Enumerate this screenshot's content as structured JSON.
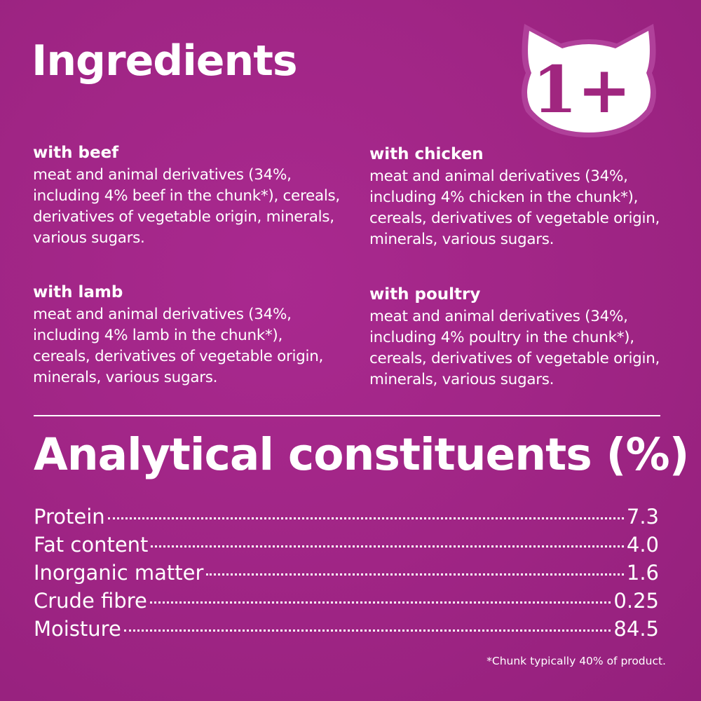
{
  "title": "Ingredients",
  "badge": {
    "text": "1+",
    "icon": "cat-head-icon"
  },
  "ingredients": [
    {
      "heading": "with beef",
      "text": "meat and animal derivatives (34%, including 4% beef in the chunk*), cereals, derivatives of vegetable origin, minerals, various sugars."
    },
    {
      "heading": "with chicken",
      "text": "meat and animal derivatives (34%, including 4% chicken in the chunk*), cereals, derivatives of vegetable origin, minerals, various sugars."
    },
    {
      "heading": "with lamb",
      "text": "meat and animal derivatives (34%, including 4% lamb in the chunk*), cereals, derivatives of vegetable origin, minerals, various sugars."
    },
    {
      "heading": "with poultry",
      "text": "meat and animal derivatives (34%, including 4% poultry in the chunk*), cereals, derivatives of vegetable origin, minerals, various sugars."
    }
  ],
  "analytical": {
    "title": "Analytical constituents (%)",
    "rows": [
      {
        "label": "Protein",
        "value": "7.3"
      },
      {
        "label": "Fat content",
        "value": "4.0"
      },
      {
        "label": "Inorganic matter",
        "value": "1.6"
      },
      {
        "label": "Crude fibre",
        "value": "0.25"
      },
      {
        "label": "Moisture",
        "value": "84.5"
      }
    ]
  },
  "footnote": "*Chunk typically 40% of product.",
  "colors": {
    "background": "#a02585",
    "text": "#ffffff"
  }
}
